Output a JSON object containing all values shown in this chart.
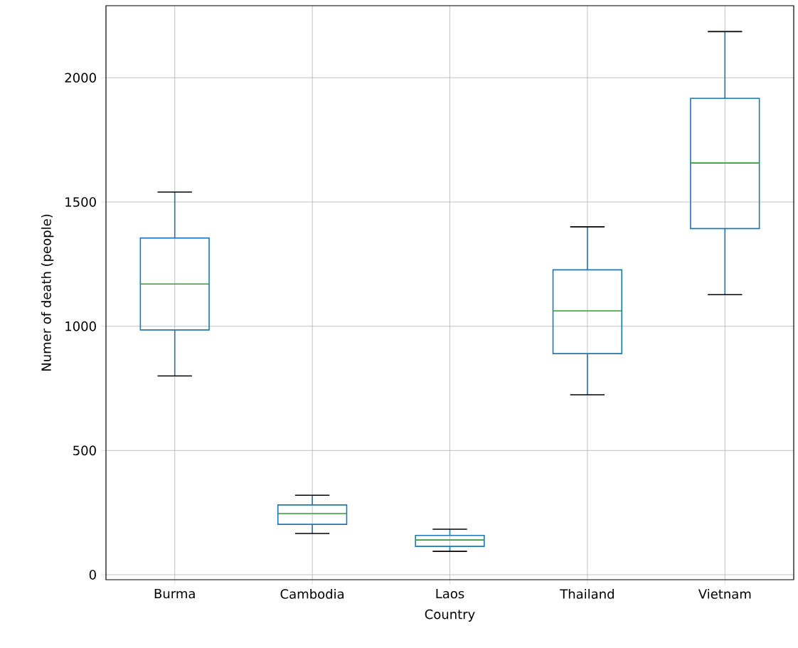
{
  "chart_data": {
    "type": "box",
    "xlabel": "Country",
    "ylabel": "Numer of death (people)",
    "categories": [
      "Burma",
      "Cambodia",
      "Laos",
      "Thailand",
      "Vietnam"
    ],
    "color": "#1f77b4",
    "boxes": [
      {
        "low": 800,
        "q1": 985,
        "median": 1170,
        "q3": 1355,
        "high": 1540
      },
      {
        "low": 166,
        "q1": 203,
        "median": 246,
        "q3": 281,
        "high": 320
      },
      {
        "low": 94,
        "q1": 114,
        "median": 140,
        "q3": 158,
        "high": 183
      },
      {
        "low": 724,
        "q1": 890,
        "median": 1062,
        "q3": 1227,
        "high": 1400
      },
      {
        "low": 1127,
        "q1": 1393,
        "median": 1657,
        "q3": 1917,
        "high": 2186
      }
    ],
    "ylim": [
      -20,
      2290
    ],
    "yticks": [
      0,
      500,
      1000,
      1500,
      2000
    ],
    "grid": true
  }
}
